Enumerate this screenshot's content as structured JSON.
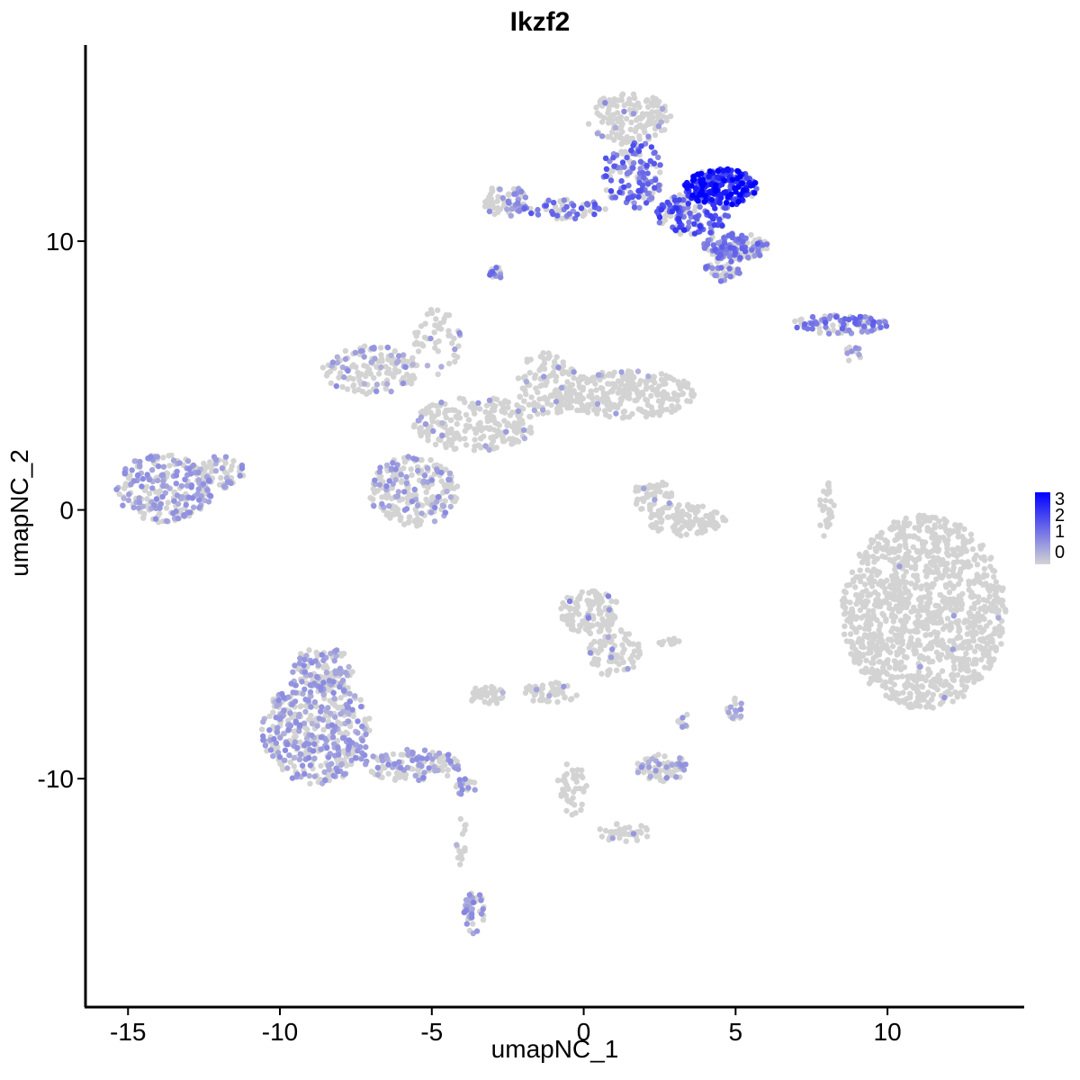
{
  "chart_data": {
    "type": "scatter",
    "title": "Ikzf2",
    "xlabel": "umapNC_1",
    "ylabel": "umapNC_2",
    "xlim": [
      -16.4,
      14.5
    ],
    "ylim": [
      -18.5,
      17.3
    ],
    "x_ticks": [
      -15,
      -10,
      -5,
      0,
      5,
      10
    ],
    "x_tick_labels": [
      "-15",
      "-10",
      "-5",
      "0",
      "5",
      "10"
    ],
    "y_ticks": [
      -10,
      0,
      10
    ],
    "y_tick_labels": [
      "-10",
      "0",
      "10"
    ],
    "grid": false,
    "legend_position": "right",
    "color_scale": {
      "low": "#d3d3d3",
      "high": "#0000ff",
      "range": [
        0,
        3.2
      ],
      "labels": [
        "3",
        "2",
        "1",
        "0"
      ]
    },
    "clusters": [
      {
        "cx": -13.8,
        "cy": 0.8,
        "rx": 1.6,
        "ry": 1.3,
        "n": 230,
        "expr": 0.8,
        "pos_frac": 0.5
      },
      {
        "cx": -12.0,
        "cy": 1.4,
        "rx": 0.9,
        "ry": 0.6,
        "n": 60,
        "expr": 0.8,
        "pos_frac": 0.35
      },
      {
        "cx": -7.0,
        "cy": 5.2,
        "rx": 1.6,
        "ry": 0.9,
        "n": 140,
        "expr": 0.8,
        "pos_frac": 0.3
      },
      {
        "cx": -5.6,
        "cy": 0.7,
        "rx": 1.5,
        "ry": 1.3,
        "n": 230,
        "expr": 0.8,
        "pos_frac": 0.25
      },
      {
        "cx": -3.6,
        "cy": 3.2,
        "rx": 2.0,
        "ry": 1.0,
        "n": 220,
        "expr": 0.7,
        "pos_frac": 0.08
      },
      {
        "cx": -4.8,
        "cy": 6.3,
        "rx": 0.8,
        "ry": 1.3,
        "n": 50,
        "expr": 0.8,
        "pos_frac": 0.15
      },
      {
        "cx": -1.2,
        "cy": 4.7,
        "rx": 1.0,
        "ry": 1.2,
        "n": 120,
        "expr": 0.7,
        "pos_frac": 0.06
      },
      {
        "cx": 1.4,
        "cy": 4.3,
        "rx": 2.3,
        "ry": 0.9,
        "n": 260,
        "expr": 0.7,
        "pos_frac": 0.04
      },
      {
        "cx": 2.3,
        "cy": 0.5,
        "rx": 0.7,
        "ry": 0.6,
        "n": 50,
        "expr": 0.7,
        "pos_frac": 0.02
      },
      {
        "cx": 3.4,
        "cy": -0.4,
        "rx": 1.3,
        "ry": 0.6,
        "n": 110,
        "expr": 0.7,
        "pos_frac": 0.02
      },
      {
        "cx": -2.6,
        "cy": 11.5,
        "rx": 0.7,
        "ry": 0.6,
        "n": 70,
        "expr": 0.9,
        "pos_frac": 0.3
      },
      {
        "cx": -0.6,
        "cy": 11.2,
        "rx": 1.4,
        "ry": 0.4,
        "n": 60,
        "expr": 1.4,
        "pos_frac": 0.5
      },
      {
        "cx": 1.5,
        "cy": 14.6,
        "rx": 1.4,
        "ry": 0.9,
        "n": 160,
        "expr": 0.8,
        "pos_frac": 0.06
      },
      {
        "cx": 1.6,
        "cy": 12.5,
        "rx": 1.0,
        "ry": 1.3,
        "n": 140,
        "expr": 1.5,
        "pos_frac": 0.6
      },
      {
        "cx": 4.5,
        "cy": 12.0,
        "rx": 1.2,
        "ry": 0.7,
        "n": 220,
        "expr": 2.5,
        "pos_frac": 0.9
      },
      {
        "cx": 3.6,
        "cy": 11.0,
        "rx": 1.2,
        "ry": 0.8,
        "n": 140,
        "expr": 1.8,
        "pos_frac": 0.65
      },
      {
        "cx": 5.0,
        "cy": 9.8,
        "rx": 1.1,
        "ry": 0.5,
        "n": 130,
        "expr": 1.3,
        "pos_frac": 0.6
      },
      {
        "cx": 4.6,
        "cy": 9.0,
        "rx": 0.6,
        "ry": 0.5,
        "n": 50,
        "expr": 1.2,
        "pos_frac": 0.5
      },
      {
        "cx": -2.9,
        "cy": 8.8,
        "rx": 0.25,
        "ry": 0.25,
        "n": 15,
        "expr": 1.2,
        "pos_frac": 0.6
      },
      {
        "cx": 8.4,
        "cy": 6.9,
        "rx": 1.6,
        "ry": 0.35,
        "n": 90,
        "expr": 1.3,
        "pos_frac": 0.6
      },
      {
        "cx": 8.9,
        "cy": 5.8,
        "rx": 0.3,
        "ry": 0.3,
        "n": 12,
        "expr": 1.0,
        "pos_frac": 0.4
      },
      {
        "cx": 8.0,
        "cy": 0.0,
        "rx": 0.25,
        "ry": 1.1,
        "n": 30,
        "expr": 0.7,
        "pos_frac": 0.08
      },
      {
        "cx": 11.2,
        "cy": -3.8,
        "rx": 2.7,
        "ry": 3.6,
        "n": 1200,
        "expr": 0.7,
        "pos_frac": 0.004
      },
      {
        "cx": 0.2,
        "cy": -3.8,
        "rx": 1.0,
        "ry": 0.8,
        "n": 120,
        "expr": 1.0,
        "pos_frac": 0.05
      },
      {
        "cx": 1.0,
        "cy": -5.3,
        "rx": 0.9,
        "ry": 0.9,
        "n": 90,
        "expr": 0.8,
        "pos_frac": 0.03
      },
      {
        "cx": -1.1,
        "cy": -6.8,
        "rx": 0.9,
        "ry": 0.4,
        "n": 50,
        "expr": 0.7,
        "pos_frac": 0.02
      },
      {
        "cx": -3.2,
        "cy": -6.9,
        "rx": 0.6,
        "ry": 0.35,
        "n": 40,
        "expr": 0.7,
        "pos_frac": 0.02
      },
      {
        "cx": 2.6,
        "cy": -9.6,
        "rx": 0.9,
        "ry": 0.5,
        "n": 70,
        "expr": 0.8,
        "pos_frac": 0.3
      },
      {
        "cx": 5.0,
        "cy": -7.4,
        "rx": 0.3,
        "ry": 0.4,
        "n": 20,
        "expr": 0.8,
        "pos_frac": 0.3
      },
      {
        "cx": 3.3,
        "cy": -7.8,
        "rx": 0.2,
        "ry": 0.3,
        "n": 10,
        "expr": 0.7,
        "pos_frac": 0.1
      },
      {
        "cx": 2.8,
        "cy": -4.9,
        "rx": 0.35,
        "ry": 0.15,
        "n": 10,
        "expr": 0.7,
        "pos_frac": 0.1
      },
      {
        "cx": -0.4,
        "cy": -10.4,
        "rx": 0.5,
        "ry": 1.0,
        "n": 40,
        "expr": 0.7,
        "pos_frac": 0.05
      },
      {
        "cx": 1.3,
        "cy": -12.0,
        "rx": 0.9,
        "ry": 0.35,
        "n": 40,
        "expr": 0.7,
        "pos_frac": 0.04
      },
      {
        "cx": -8.8,
        "cy": -8.2,
        "rx": 1.8,
        "ry": 2.0,
        "n": 420,
        "expr": 0.8,
        "pos_frac": 0.45
      },
      {
        "cx": -8.6,
        "cy": -5.9,
        "rx": 1.0,
        "ry": 0.8,
        "n": 110,
        "expr": 0.8,
        "pos_frac": 0.45
      },
      {
        "cx": -5.6,
        "cy": -9.5,
        "rx": 1.6,
        "ry": 0.6,
        "n": 130,
        "expr": 0.8,
        "pos_frac": 0.3
      },
      {
        "cx": -3.9,
        "cy": -10.3,
        "rx": 0.4,
        "ry": 0.3,
        "n": 20,
        "expr": 0.8,
        "pos_frac": 0.3
      },
      {
        "cx": -3.6,
        "cy": -15.0,
        "rx": 0.35,
        "ry": 0.8,
        "n": 40,
        "expr": 0.9,
        "pos_frac": 0.6
      },
      {
        "cx": -4.0,
        "cy": -12.4,
        "rx": 0.2,
        "ry": 1.2,
        "n": 15,
        "expr": 0.7,
        "pos_frac": 0.05
      }
    ]
  }
}
